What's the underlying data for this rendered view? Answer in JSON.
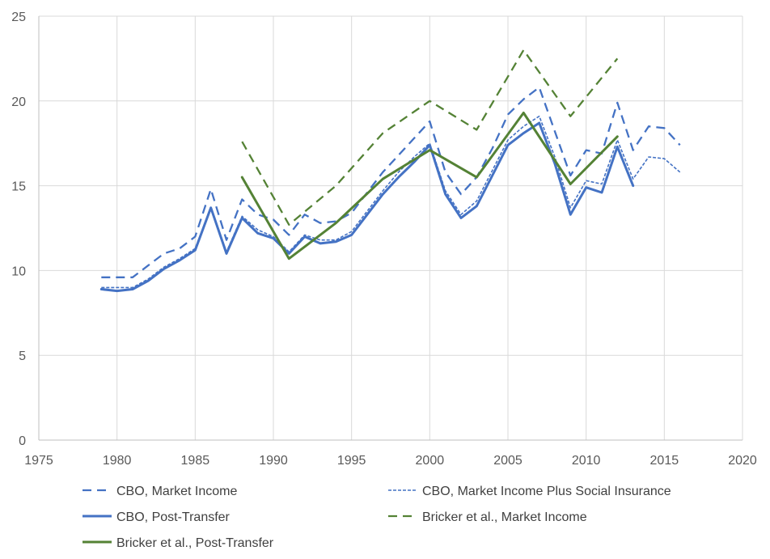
{
  "chart_data": {
    "type": "line",
    "title": "",
    "xlabel": "",
    "ylabel": "",
    "xlim": [
      1975,
      2020
    ],
    "ylim": [
      0,
      25
    ],
    "x_ticks": [
      1975,
      1980,
      1985,
      1990,
      1995,
      2000,
      2005,
      2010,
      2015,
      2020
    ],
    "y_ticks": [
      0,
      5,
      10,
      15,
      20,
      25
    ],
    "grid": "major gridlines on both axes",
    "legend_position": "bottom",
    "series": [
      {
        "name": "CBO, Market Income",
        "color": "#4472C4",
        "line_style": "dashed",
        "points": [
          [
            1979,
            9.6
          ],
          [
            1980,
            9.6
          ],
          [
            1981,
            9.6
          ],
          [
            1982,
            10.3
          ],
          [
            1983,
            11.0
          ],
          [
            1984,
            11.3
          ],
          [
            1985,
            12.0
          ],
          [
            1986,
            14.8
          ],
          [
            1987,
            11.8
          ],
          [
            1988,
            14.2
          ],
          [
            1989,
            13.3
          ],
          [
            1990,
            13.0
          ],
          [
            1991,
            12.1
          ],
          [
            1992,
            13.3
          ],
          [
            1993,
            12.8
          ],
          [
            1994,
            12.9
          ],
          [
            1995,
            13.4
          ],
          [
            1996,
            14.6
          ],
          [
            1997,
            15.8
          ],
          [
            1998,
            16.8
          ],
          [
            1999,
            17.8
          ],
          [
            2000,
            18.8
          ],
          [
            2001,
            15.8
          ],
          [
            2002,
            14.5
          ],
          [
            2003,
            15.5
          ],
          [
            2004,
            17.2
          ],
          [
            2005,
            19.2
          ],
          [
            2006,
            20.1
          ],
          [
            2007,
            20.8
          ],
          [
            2008,
            18.2
          ],
          [
            2009,
            15.6
          ],
          [
            2010,
            17.1
          ],
          [
            2011,
            16.9
          ],
          [
            2012,
            19.9
          ],
          [
            2013,
            17.1
          ],
          [
            2014,
            18.5
          ],
          [
            2015,
            18.4
          ],
          [
            2016,
            17.4
          ]
        ]
      },
      {
        "name": "CBO, Market Income Plus Social Insurance",
        "color": "#4472C4",
        "line_style": "short-dashed",
        "points": [
          [
            1979,
            9.0
          ],
          [
            1980,
            9.0
          ],
          [
            1981,
            9.0
          ],
          [
            1982,
            9.5
          ],
          [
            1983,
            10.2
          ],
          [
            1984,
            10.7
          ],
          [
            1985,
            11.3
          ],
          [
            1986,
            13.7
          ],
          [
            1987,
            11.1
          ],
          [
            1988,
            13.2
          ],
          [
            1989,
            12.4
          ],
          [
            1990,
            12.0
          ],
          [
            1991,
            11.1
          ],
          [
            1992,
            12.1
          ],
          [
            1993,
            11.8
          ],
          [
            1994,
            11.8
          ],
          [
            1995,
            12.3
          ],
          [
            1996,
            13.5
          ],
          [
            1997,
            14.7
          ],
          [
            1998,
            15.8
          ],
          [
            1999,
            16.7
          ],
          [
            2000,
            17.5
          ],
          [
            2001,
            14.7
          ],
          [
            2002,
            13.3
          ],
          [
            2003,
            14.1
          ],
          [
            2004,
            15.9
          ],
          [
            2005,
            17.7
          ],
          [
            2006,
            18.5
          ],
          [
            2007,
            19.1
          ],
          [
            2008,
            16.7
          ],
          [
            2009,
            13.7
          ],
          [
            2010,
            15.3
          ],
          [
            2011,
            15.1
          ],
          [
            2012,
            17.7
          ],
          [
            2013,
            15.4
          ],
          [
            2014,
            16.7
          ],
          [
            2015,
            16.6
          ],
          [
            2016,
            15.8
          ]
        ]
      },
      {
        "name": "CBO, Post-Transfer",
        "color": "#4472C4",
        "line_style": "solid",
        "points": [
          [
            1979,
            8.9
          ],
          [
            1980,
            8.8
          ],
          [
            1981,
            8.9
          ],
          [
            1982,
            9.4
          ],
          [
            1983,
            10.1
          ],
          [
            1984,
            10.6
          ],
          [
            1985,
            11.2
          ],
          [
            1986,
            13.7
          ],
          [
            1987,
            11.0
          ],
          [
            1988,
            13.1
          ],
          [
            1989,
            12.2
          ],
          [
            1990,
            11.9
          ],
          [
            1991,
            11.0
          ],
          [
            1992,
            12.0
          ],
          [
            1993,
            11.6
          ],
          [
            1994,
            11.7
          ],
          [
            1995,
            12.1
          ],
          [
            1996,
            13.3
          ],
          [
            1997,
            14.5
          ],
          [
            1998,
            15.5
          ],
          [
            1999,
            16.4
          ],
          [
            2000,
            17.4
          ],
          [
            2001,
            14.5
          ],
          [
            2002,
            13.1
          ],
          [
            2003,
            13.8
          ],
          [
            2004,
            15.6
          ],
          [
            2005,
            17.4
          ],
          [
            2006,
            18.1
          ],
          [
            2007,
            18.7
          ],
          [
            2008,
            16.3
          ],
          [
            2009,
            13.3
          ],
          [
            2010,
            14.9
          ],
          [
            2011,
            14.6
          ],
          [
            2012,
            17.3
          ],
          [
            2013,
            15.0
          ]
        ]
      },
      {
        "name": "Bricker et al., Market Income",
        "color": "#548235",
        "line_style": "dashed",
        "points": [
          [
            1988,
            17.6
          ],
          [
            1991,
            12.7
          ],
          [
            1994,
            15.0
          ],
          [
            1997,
            18.1
          ],
          [
            2000,
            20.0
          ],
          [
            2003,
            18.3
          ],
          [
            2006,
            23.0
          ],
          [
            2009,
            19.1
          ],
          [
            2012,
            22.5
          ]
        ]
      },
      {
        "name": "Bricker et al., Post-Transfer",
        "color": "#548235",
        "line_style": "solid",
        "points": [
          [
            1988,
            15.5
          ],
          [
            1991,
            10.7
          ],
          [
            1994,
            12.8
          ],
          [
            1997,
            15.4
          ],
          [
            2000,
            17.1
          ],
          [
            2003,
            15.5
          ],
          [
            2006,
            19.3
          ],
          [
            2009,
            15.1
          ],
          [
            2012,
            17.9
          ]
        ]
      }
    ]
  }
}
